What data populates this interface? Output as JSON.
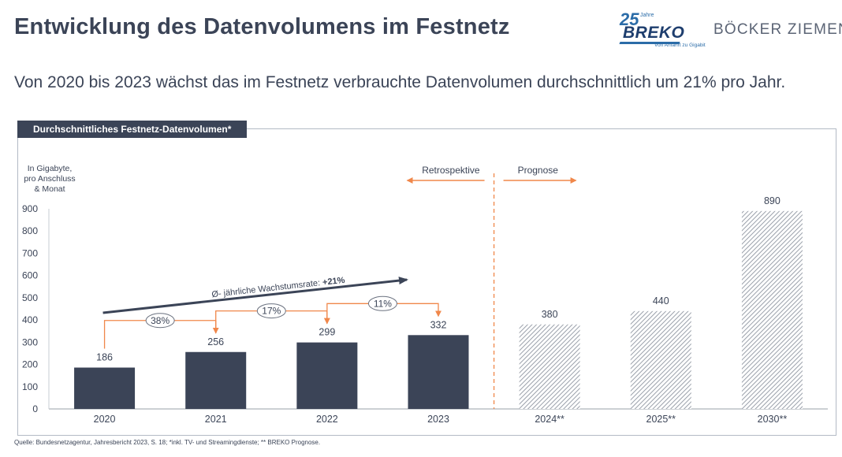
{
  "header": {
    "title": "Entwicklung des Datenvolumens im Festnetz",
    "subtitle": "Von 2020 bis 2023 wächst das im Festnetz verbrauchte Datenvolumen durchschnittlich um 21% pro Jahr."
  },
  "logos": {
    "breko_number": "25",
    "breko_jahre": "Jahre",
    "breko_name": "BREKO",
    "breko_tagline": "Von Anfahrt zu Gigabit",
    "partner": "BÖCKER ZIEMEN"
  },
  "panel": {
    "tab_label": "Durchschnittliches Festnetz-Datenvolumen*",
    "unit_line1": "In Gigabyte,",
    "unit_line2": "pro Anschluss",
    "unit_line3": "& Monat"
  },
  "footer": {
    "source": "Quelle: Bundesnetzagentur, Jahresbericht 2023, S. 18; *inkl. TV- und Streamingdienste; ** BREKO Prognose."
  },
  "colors": {
    "bar": "#3b4457",
    "forecast_hatch": "#9aa0aa",
    "accent": "#f0874a",
    "text": "#3b4457"
  },
  "chart_data": {
    "type": "bar",
    "categories": [
      "2020",
      "2021",
      "2022",
      "2023",
      "2024**",
      "2025**",
      "2030**"
    ],
    "values": [
      186,
      256,
      299,
      332,
      380,
      440,
      890
    ],
    "value_labels": [
      "186",
      "256",
      "299",
      "332",
      "380",
      "440",
      "890"
    ],
    "forecast_flags": [
      false,
      false,
      false,
      false,
      true,
      true,
      true
    ],
    "ylim": [
      0,
      900
    ],
    "yticks": [
      0,
      100,
      200,
      300,
      400,
      500,
      600,
      700,
      800,
      900
    ],
    "grid": false,
    "growth_labels": [
      "38%",
      "17%",
      "11%"
    ],
    "trend_label": "Ø- jährliche Wachstumsrate:",
    "trend_value": "+21%",
    "retro_label": "Retrospektive",
    "forecast_label": "Prognose"
  }
}
